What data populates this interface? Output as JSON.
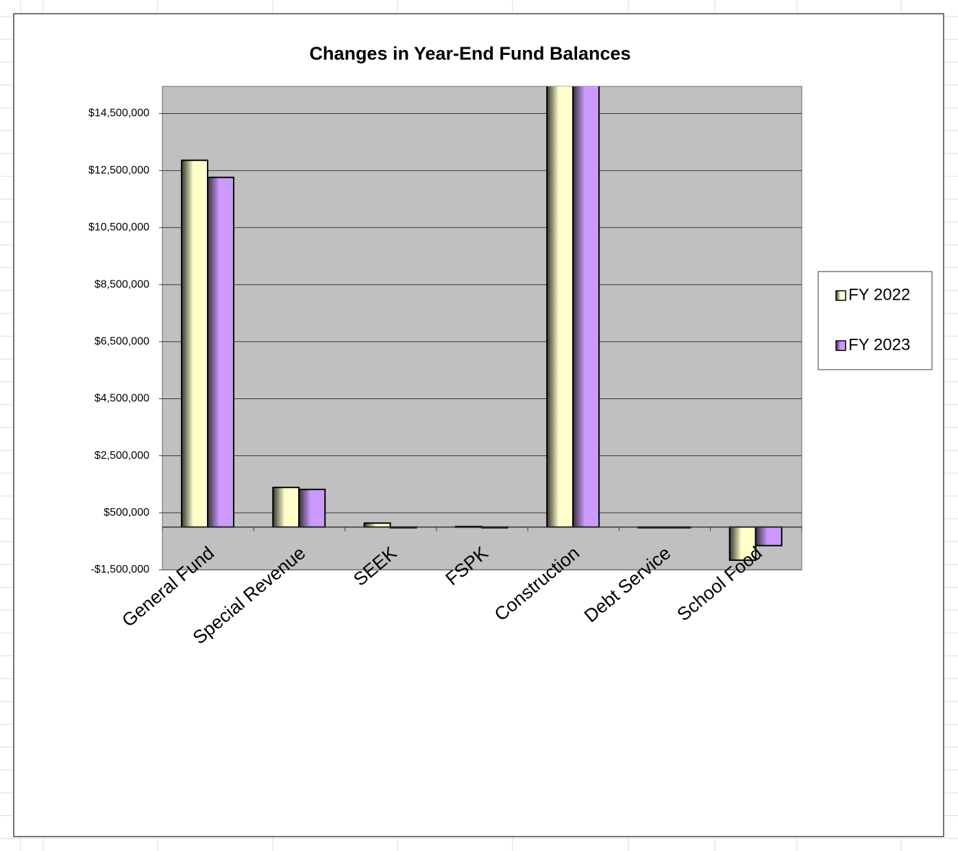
{
  "chart_data": {
    "type": "bar",
    "title": "Changes in Year-End Fund Balances",
    "categories": [
      "General Fund",
      "Special Revenue",
      "SEEK",
      "FSPK",
      "Construction",
      "Debt Service",
      "School Food"
    ],
    "series": [
      {
        "name": "FY 2022",
        "color": "#ffffcc",
        "values": [
          12860000,
          1390000,
          140000,
          20000,
          16000000,
          0,
          -1160000
        ]
      },
      {
        "name": "FY 2023",
        "color": "#cc99ff",
        "values": [
          12260000,
          1320000,
          0,
          0,
          16000000,
          0,
          -650000
        ]
      }
    ],
    "ylim": [
      -1500000,
      15450000
    ],
    "yticks": [
      {
        "value": -1500000,
        "label": "-$1,500,000"
      },
      {
        "value": 500000,
        "label": "$500,000"
      },
      {
        "value": 2500000,
        "label": "$2,500,000"
      },
      {
        "value": 4500000,
        "label": "$4,500,000"
      },
      {
        "value": 6500000,
        "label": "$6,500,000"
      },
      {
        "value": 8500000,
        "label": "$8,500,000"
      },
      {
        "value": 10500000,
        "label": "$10,500,000"
      },
      {
        "value": 12500000,
        "label": "$12,500,000"
      },
      {
        "value": 14500000,
        "label": "$14,500,000"
      }
    ],
    "grid": true,
    "legend": "right"
  }
}
